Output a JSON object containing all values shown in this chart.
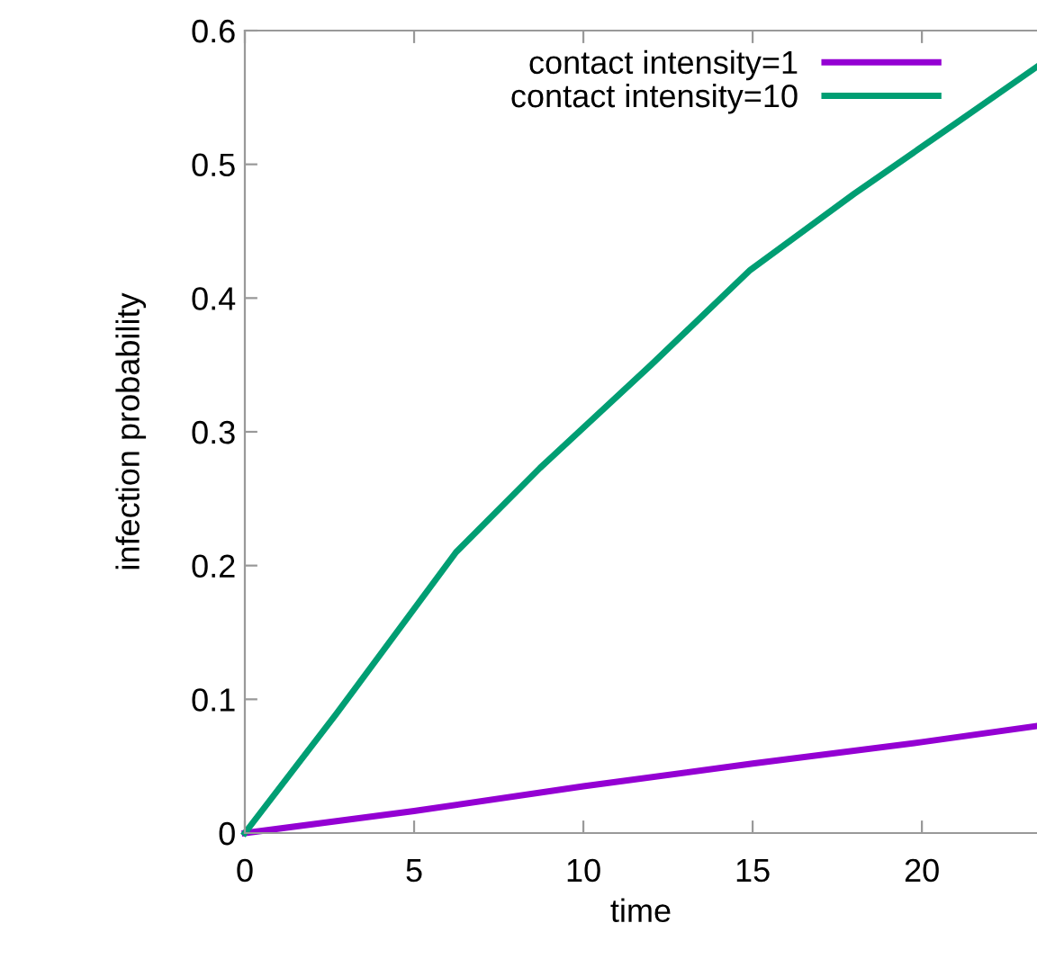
{
  "chart_data": {
    "type": "line",
    "xlabel": "time",
    "ylabel": "infection probability",
    "xlim": [
      0,
      23.4
    ],
    "ylim": [
      0,
      0.6
    ],
    "xticks": [
      0,
      5,
      10,
      15,
      20
    ],
    "yticks": [
      0,
      0.1,
      0.2,
      0.3,
      0.4,
      0.5,
      0.6
    ],
    "grid": false,
    "legend": "top right",
    "series": [
      {
        "name": "contact intensity=1",
        "color": "#9400d3",
        "x": [
          0,
          5,
          10,
          15,
          20,
          23.4
        ],
        "values": [
          0,
          0.0165,
          0.035,
          0.052,
          0.068,
          0.08
        ]
      },
      {
        "name": "contact intensity=10",
        "color": "#009e73",
        "x": [
          0,
          2.7,
          6.24,
          8.72,
          12,
          14.93,
          18,
          20.96,
          23.4
        ],
        "values": [
          0,
          0.089,
          0.21,
          0.273,
          0.35,
          0.421,
          0.478,
          0.53,
          0.573
        ]
      }
    ]
  }
}
